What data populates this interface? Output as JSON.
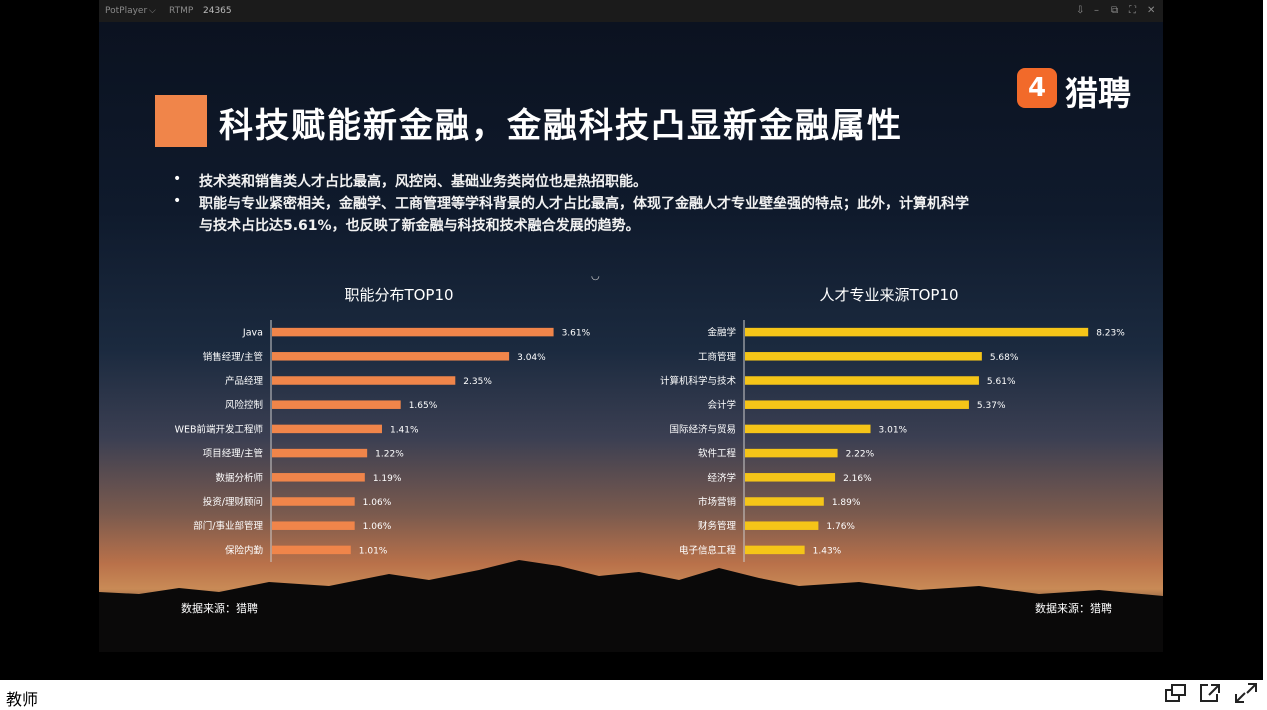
{
  "window": {
    "app_name": "PotPlayer",
    "app_dropdown": "⌵",
    "stream_label": "RTMP",
    "stream_id": "24365",
    "controls": [
      "⇩",
      "–",
      "⧉",
      "⛶",
      "✕"
    ]
  },
  "slide": {
    "title": "科技赋能新金融，金融科技凸显新金融属性",
    "logo": {
      "mark": "4",
      "text": "猎聘"
    },
    "bullets": [
      "技术类和销售类人才占比最高，风控岗、基础业务类岗位也是热招职能。",
      "职能与专业紧密相关，金融学、工商管理等学科背景的人才占比最高，体现了金融人才专业壁垒强的特点；此外，计算机科学",
      "与技术占比达5.61%，也反映了新金融与科技和技术融合发展的趋势。"
    ],
    "bullet_mark": "•",
    "moon": "◡",
    "source_left": "数据来源：猎聘",
    "source_right": "数据来源：猎聘"
  },
  "chart_data": [
    {
      "type": "bar",
      "orientation": "horizontal",
      "title": "职能分布TOP10",
      "categories": [
        "Java",
        "销售经理/主管",
        "产品经理",
        "风险控制",
        "WEB前端开发工程师",
        "项目经理/主管",
        "数据分析师",
        "投资/理财顾问",
        "部门/事业部管理",
        "保险内勤"
      ],
      "values": [
        3.61,
        3.04,
        2.35,
        1.65,
        1.41,
        1.22,
        1.19,
        1.06,
        1.06,
        1.01
      ],
      "value_labels": [
        "3.61%",
        "3.04%",
        "2.35%",
        "1.65%",
        "1.41%",
        "1.22%",
        "1.19%",
        "1.06%",
        "1.06%",
        "1.01%"
      ],
      "unit": "%",
      "color": "#f0854a"
    },
    {
      "type": "bar",
      "orientation": "horizontal",
      "title": "人才专业来源TOP10",
      "categories": [
        "金融学",
        "工商管理",
        "计算机科学与技术",
        "会计学",
        "国际经济与贸易",
        "软件工程",
        "经济学",
        "市场营销",
        "财务管理",
        "电子信息工程"
      ],
      "values": [
        8.23,
        5.68,
        5.61,
        5.37,
        3.01,
        2.22,
        2.16,
        1.89,
        1.76,
        1.43
      ],
      "value_labels": [
        "8.23%",
        "5.68%",
        "5.61%",
        "5.37%",
        "3.01%",
        "2.22%",
        "2.16%",
        "1.89%",
        "1.76%",
        "1.43%"
      ],
      "unit": "%",
      "color": "#f5c518"
    }
  ],
  "footer": {
    "teacher_label": "教师",
    "icons": [
      "screen-switch-icon",
      "popout-icon",
      "fullscreen-icon"
    ]
  },
  "colors": {
    "accent_orange": "#f0854a",
    "bar_yellow": "#f5c518",
    "logo_orange": "#f26a2a"
  }
}
